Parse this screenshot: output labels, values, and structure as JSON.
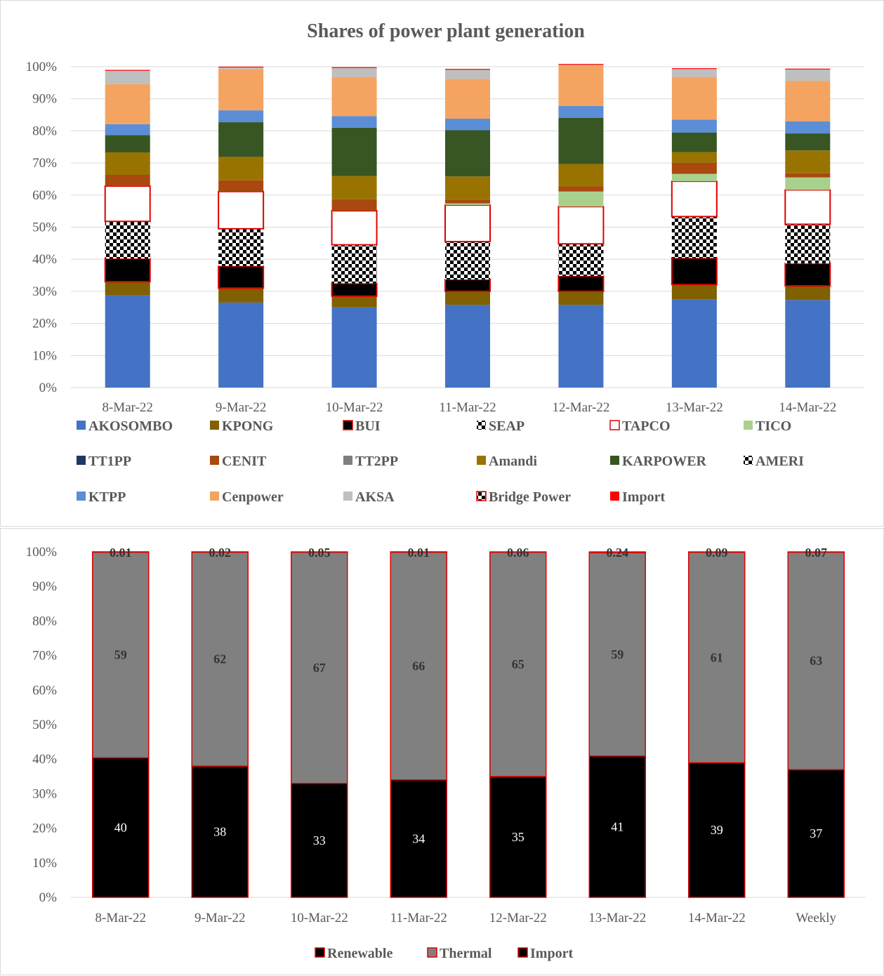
{
  "chart_data": [
    {
      "type": "bar",
      "stacked": true,
      "percent": true,
      "title": "Shares of power plant generation",
      "categories": [
        "8-Mar-22",
        "9-Mar-22",
        "10-Mar-22",
        "11-Mar-22",
        "12-Mar-22",
        "13-Mar-22",
        "14-Mar-22"
      ],
      "ylim": [
        0,
        100
      ],
      "yticks": [
        "0%",
        "10%",
        "20%",
        "30%",
        "40%",
        "50%",
        "60%",
        "70%",
        "80%",
        "90%",
        "100%"
      ],
      "grid": true,
      "legend_position": "bottom",
      "series": [
        {
          "name": "AKOSOMBO",
          "color": "#4472c4",
          "pattern": "solid",
          "values": [
            28.7,
            26.5,
            25.0,
            25.8,
            25.8,
            27.5,
            27.3
          ]
        },
        {
          "name": "KPONG",
          "color": "#806000",
          "pattern": "solid",
          "values": [
            4.3,
            4.5,
            3.5,
            4.2,
            4.2,
            4.6,
            4.4
          ]
        },
        {
          "name": "BUI",
          "color": "#000000",
          "pattern": "red-outline",
          "values": [
            7.2,
            6.9,
            4.0,
            3.7,
            4.8,
            8.3,
            7.0
          ]
        },
        {
          "name": "SEAP",
          "color": "#000000",
          "pattern": "checker",
          "values": [
            11.6,
            11.6,
            12.0,
            11.8,
            10.0,
            12.9,
            12.2
          ]
        },
        {
          "name": "TAPCO",
          "color": "#ffffff",
          "pattern": "red-outline",
          "values": [
            11.0,
            11.6,
            10.6,
            11.4,
            11.6,
            11.0,
            10.7
          ]
        },
        {
          "name": "TICO",
          "color": "#a9d18e",
          "pattern": "solid",
          "values": [
            0,
            0,
            0,
            0.5,
            4.7,
            2.3,
            3.9
          ]
        },
        {
          "name": "TT1PP",
          "color": "#203864",
          "pattern": "solid",
          "values": [
            0,
            0,
            0,
            0,
            0,
            0,
            0
          ]
        },
        {
          "name": "CENIT",
          "color": "#a9480f",
          "pattern": "solid",
          "values": [
            3.5,
            3.5,
            3.6,
            1.2,
            1.6,
            3.5,
            1.3
          ]
        },
        {
          "name": "TT2PP",
          "color": "#7f7f7f",
          "pattern": "solid",
          "values": [
            0,
            0,
            0,
            0,
            0,
            0,
            0
          ]
        },
        {
          "name": "Amandi",
          "color": "#997300",
          "pattern": "solid",
          "values": [
            7.0,
            7.3,
            7.2,
            7.2,
            7.0,
            3.3,
            7.1
          ]
        },
        {
          "name": "KARPOWER",
          "color": "#375623",
          "pattern": "solid",
          "values": [
            5.4,
            10.8,
            15.1,
            14.4,
            14.4,
            6.1,
            5.3
          ]
        },
        {
          "name": "AMERI",
          "color": "#000000",
          "pattern": "checker",
          "values": [
            0,
            0,
            0,
            0,
            0,
            0,
            0
          ]
        },
        {
          "name": "KTPP",
          "color": "#5b8ed6",
          "pattern": "solid",
          "values": [
            3.4,
            3.7,
            3.6,
            3.6,
            3.7,
            4.0,
            3.8
          ]
        },
        {
          "name": "Cenpower",
          "color": "#f4a460",
          "pattern": "solid",
          "values": [
            12.5,
            12.9,
            12.2,
            12.4,
            12.7,
            13.3,
            12.6
          ]
        },
        {
          "name": "AKSA",
          "color": "#bfbfbf",
          "pattern": "solid",
          "values": [
            4.4,
            0.7,
            3.0,
            3.1,
            0.3,
            2.5,
            3.7
          ]
        },
        {
          "name": "Bridge Power",
          "color": "#000000",
          "pattern": "checker-red",
          "values": [
            0,
            0,
            0,
            0,
            0,
            0,
            0
          ]
        },
        {
          "name": "Import",
          "color": "#ff0000",
          "pattern": "solid",
          "values": [
            0.01,
            0.02,
            0.05,
            0.01,
            0.06,
            0.24,
            0.09
          ]
        }
      ]
    },
    {
      "type": "bar",
      "stacked": true,
      "percent": true,
      "title": "",
      "categories": [
        "8-Mar-22",
        "9-Mar-22",
        "10-Mar-22",
        "11-Mar-22",
        "12-Mar-22",
        "13-Mar-22",
        "14-Mar-22",
        "Weekly"
      ],
      "ylim": [
        0,
        100
      ],
      "yticks": [
        "0%",
        "10%",
        "20%",
        "30%",
        "40%",
        "50%",
        "60%",
        "70%",
        "80%",
        "90%",
        "100%"
      ],
      "grid": false,
      "legend_position": "bottom",
      "series": [
        {
          "name": "Renewable",
          "color": "#000000",
          "values": [
            40,
            38,
            33,
            34,
            35,
            41,
            39,
            37
          ],
          "labels": [
            "40",
            "38",
            "33",
            "34",
            "35",
            "41",
            "39",
            "37"
          ]
        },
        {
          "name": "Thermal",
          "color": "#808080",
          "values": [
            59,
            62,
            67,
            66,
            65,
            59,
            61,
            63
          ],
          "labels": [
            "59",
            "62",
            "67",
            "66",
            "65",
            "59",
            "61",
            "63"
          ]
        },
        {
          "name": "Import",
          "color": "#000000",
          "values": [
            0.01,
            0.02,
            0.05,
            0.01,
            0.06,
            0.24,
            0.09,
            0.07
          ],
          "labels": [
            "0.01",
            "0.02",
            "0.05",
            "0.01",
            "0.06",
            "0.24",
            "0.09",
            "0.07"
          ]
        }
      ]
    }
  ]
}
